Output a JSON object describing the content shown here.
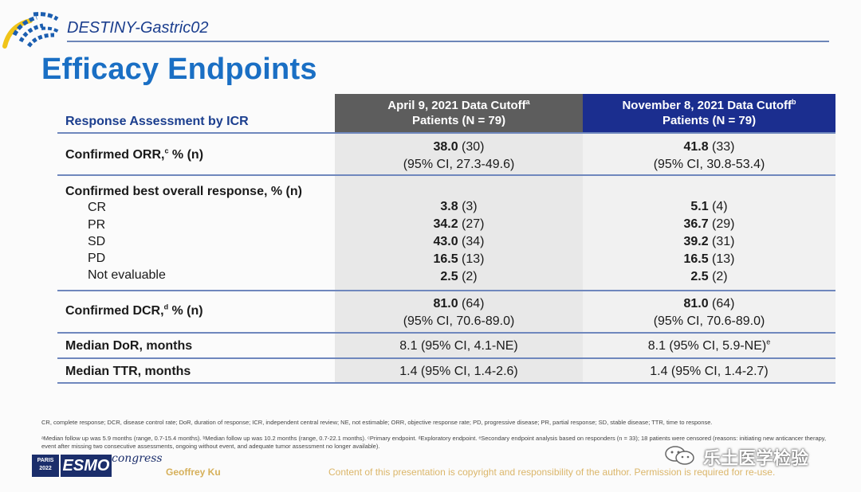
{
  "header": {
    "study_name": "DESTINY-Gastric02",
    "title": "Efficacy Endpoints"
  },
  "table": {
    "row_header_label": "Response Assessment by ICR",
    "columns": [
      {
        "line1": "April 9, 2021 Data Cutoff",
        "sup": "a",
        "line2": "Patients (N = 79)",
        "bg": "#5d5d5d"
      },
      {
        "line1": "November 8, 2021 Data Cutoff",
        "sup": "b",
        "line2": "Patients (N = 79)",
        "bg": "#1b2e8f"
      }
    ],
    "orr": {
      "label": "Confirmed ORR,",
      "sup": "c",
      "label_suffix": " % (n)",
      "a": {
        "value": "38.0",
        "n": " (30)",
        "ci": "(95% CI, 27.3-49.6)"
      },
      "b": {
        "value": "41.8",
        "n": " (33)",
        "ci": "(95% CI, 30.8-53.4)"
      }
    },
    "bor": {
      "label": "Confirmed best overall response, % (n)",
      "items": [
        {
          "label": "CR",
          "a_value": "3.8",
          "a_n": " (3)",
          "b_value": "5.1",
          "b_n": " (4)"
        },
        {
          "label": "PR",
          "a_value": "34.2",
          "a_n": " (27)",
          "b_value": "36.7",
          "b_n": " (29)"
        },
        {
          "label": "SD",
          "a_value": "43.0",
          "a_n": " (34)",
          "b_value": "39.2",
          "b_n": " (31)"
        },
        {
          "label": "PD",
          "a_value": "16.5",
          "a_n": " (13)",
          "b_value": "16.5",
          "b_n": " (13)"
        },
        {
          "label": "Not evaluable",
          "a_value": "2.5",
          "a_n": " (2)",
          "b_value": "2.5",
          "b_n": " (2)"
        }
      ]
    },
    "dcr": {
      "label": "Confirmed DCR,",
      "sup": "d",
      "label_suffix": " % (n)",
      "a": {
        "value": "81.0",
        "n": " (64)",
        "ci": "(95% CI, 70.6-89.0)"
      },
      "b": {
        "value": "81.0",
        "n": " (64)",
        "ci": "(95% CI, 70.6-89.0)"
      }
    },
    "dor": {
      "label": "Median DoR, months",
      "a": "8.1 (95% CI, 4.1-NE)",
      "b": "8.1 (95% CI, 5.9-NE)",
      "b_sup": "e"
    },
    "ttr": {
      "label": "Median TTR, months",
      "a": "1.4 (95% CI, 1.4-2.6)",
      "b": "1.4 (95% CI, 1.4-2.7)"
    }
  },
  "footnotes": {
    "abbreviations": "CR, complete response; DCR, disease control rate; DoR, duration of response; ICR, independent central review; NE, not estimable; ORR, objective response rate; PD, progressive disease; PR, partial response; SD, stable disease; TTR, time to response.",
    "notes": "ᵃMedian follow up was 5.9 months (range, 0.7-15.4 months). ᵇMedian follow up was 10.2 months (range, 0.7-22.1 months). ᶜPrimary endpoint. ᵈExploratory endpoint. ᵉSecondary endpoint analysis based on responders (n = 33); 18 patients were censored (reasons: initiating new anticancer therapy, event after missing two consecutive assessments, ongoing without event, and adequate tumor assessment no longer available)."
  },
  "footer": {
    "city": "PARIS",
    "year": "2022",
    "congress_logo": "ESMO",
    "congress_word": "congress",
    "presenter": "Geoffrey Ku",
    "copyright": "Content of this presentation is copyright and responsibility of the author. Permission is required for re-use."
  },
  "watermark": {
    "text": "乐土医学检验",
    "icon": "wechat-icon"
  },
  "colors": {
    "title_blue": "#1a6fc4",
    "navy": "#1b2e8f",
    "gray_header": "#5d5d5d",
    "rule": "#6f87bd",
    "footer_gold": "#d6b05a"
  }
}
